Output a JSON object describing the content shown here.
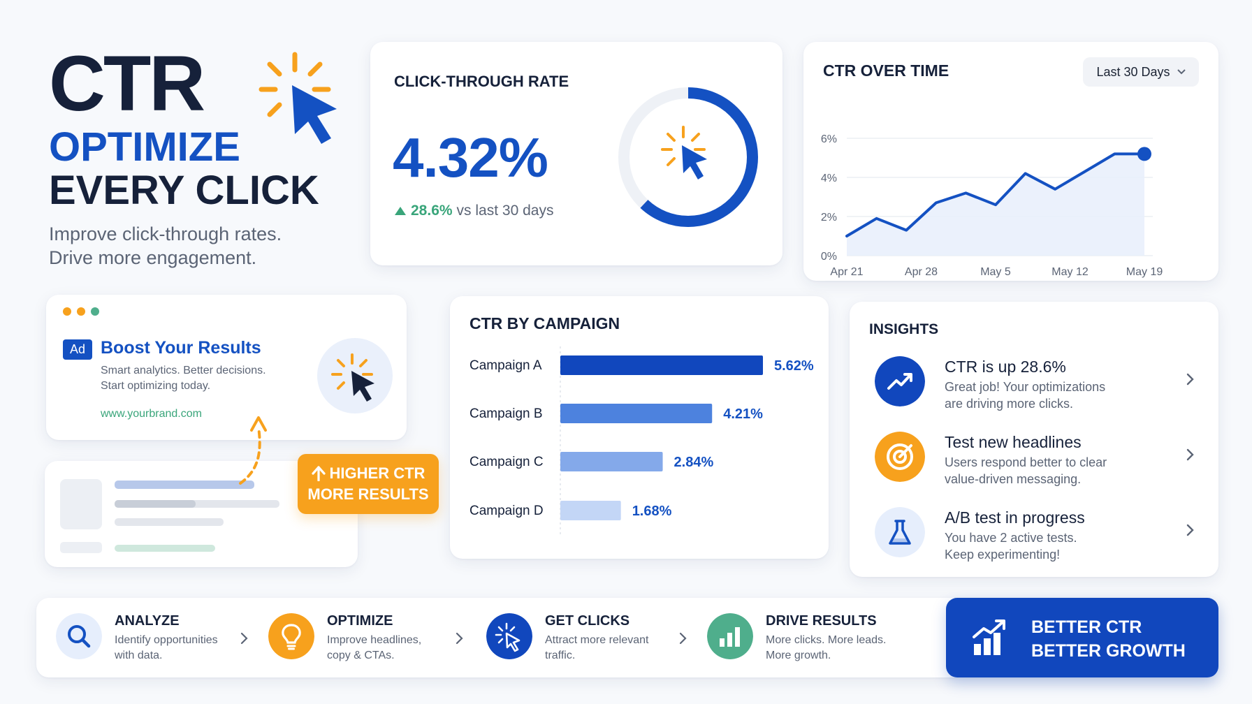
{
  "hero": {
    "title": "CTR",
    "line1": "OPTIMIZE",
    "line2": "EVERY CLICK",
    "sub1": "Improve click-through rates.",
    "sub2": "Drive more engagement."
  },
  "kpi": {
    "title": "CLICK-THROUGH RATE",
    "value": "4.32%",
    "delta_pct": "28.6%",
    "delta_text": "vs last 30 days",
    "ring_progress": 0.62
  },
  "trend": {
    "title": "CTR OVER TIME",
    "range": "Last 30 Days",
    "yticks": [
      "0%",
      "2%",
      "4%",
      "6%"
    ],
    "xticks": [
      "Apr 21",
      "Apr 28",
      "May 5",
      "May 12",
      "May 19"
    ]
  },
  "ad": {
    "badge": "Ad",
    "title": "Boost Your Results",
    "desc1": "Smart analytics. Better decisions.",
    "desc2": "Start optimizing today.",
    "url": "www.yourbrand.com"
  },
  "promo": {
    "line1": "HIGHER CTR",
    "line2": "MORE RESULTS"
  },
  "campaign": {
    "title": "CTR BY CAMPAIGN"
  },
  "insights": {
    "title": "INSIGHTS",
    "items": [
      {
        "title": "CTR is up 28.6%",
        "d1": "Great job! Your optimizations",
        "d2": "are driving more clicks.",
        "icon": "trend-up-icon"
      },
      {
        "title": "Test new headlines",
        "d1": "Users respond better to clear",
        "d2": "value-driven messaging.",
        "icon": "target-icon"
      },
      {
        "title": "A/B test in progress",
        "d1": "You have 2 active tests.",
        "d2": "Keep experimenting!",
        "icon": "flask-icon"
      }
    ]
  },
  "steps": [
    {
      "title": "ANALYZE",
      "d1": "Identify opportunities",
      "d2": "with data.",
      "icon": "search-icon"
    },
    {
      "title": "OPTIMIZE",
      "d1": "Improve headlines,",
      "d2": "copy & CTAs.",
      "icon": "lightbulb-icon"
    },
    {
      "title": "GET CLICKS",
      "d1": "Attract more relevant",
      "d2": "traffic.",
      "icon": "click-icon"
    },
    {
      "title": "DRIVE RESULTS",
      "d1": "More clicks. More leads.",
      "d2": "More growth.",
      "icon": "bar-chart-icon"
    }
  ],
  "cta": {
    "line1": "BETTER CTR",
    "line2": "BETTER GROWTH"
  },
  "colors": {
    "brand_blue": "#1451c2",
    "dark_navy": "#16213a",
    "orange": "#f7a11d",
    "green": "#39a57a",
    "teal_green": "#4fae8c"
  },
  "chart_data": [
    {
      "type": "line",
      "title": "CTR OVER TIME",
      "xlabel": "",
      "ylabel": "",
      "ylim": [
        0,
        6
      ],
      "x": [
        0,
        3,
        6,
        9,
        12,
        15,
        18,
        21,
        24,
        27,
        30
      ],
      "xtick_labels": [
        "Apr 21",
        "Apr 28",
        "May 5",
        "May 12",
        "May 19"
      ],
      "series": [
        {
          "values": [
            1.0,
            1.9,
            1.3,
            2.7,
            3.2,
            2.6,
            4.2,
            3.4,
            4.3,
            5.2,
            5.2
          ]
        }
      ],
      "grid": true,
      "area_fill": true
    },
    {
      "type": "bar",
      "orientation": "horizontal",
      "title": "CTR BY CAMPAIGN",
      "categories": [
        "Campaign A",
        "Campaign B",
        "Campaign C",
        "Campaign D"
      ],
      "values": [
        5.62,
        4.21,
        2.84,
        1.68
      ],
      "value_labels": [
        "5.62%",
        "4.21%",
        "2.84%",
        "1.68%"
      ],
      "colors": [
        "#1147bd",
        "#4d82de",
        "#84a9ea",
        "#c3d6f6"
      ]
    }
  ]
}
